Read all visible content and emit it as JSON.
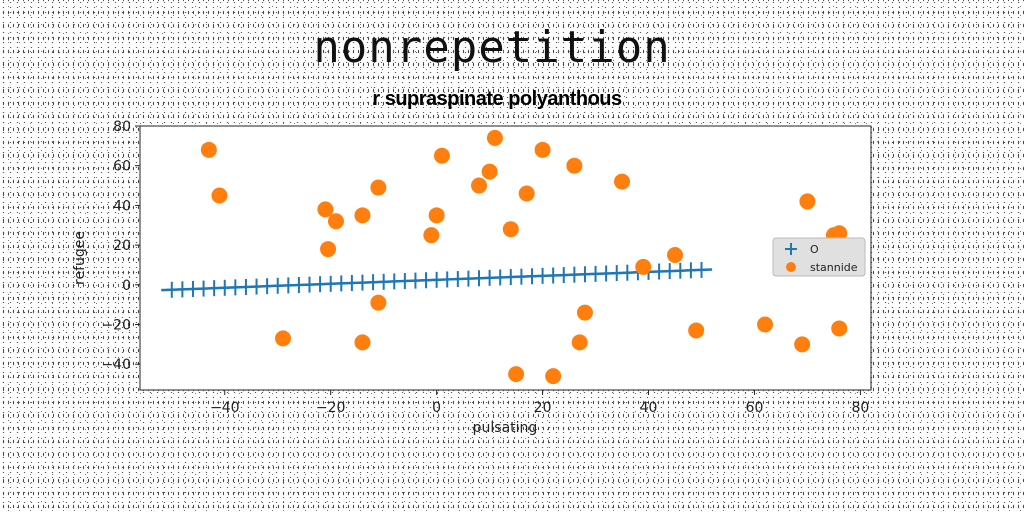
{
  "chart_data": {
    "type": "scatter",
    "title": "nonrepetition",
    "subtitle": "r supraspinate polyanthous",
    "xlabel": "pulsating",
    "ylabel": "refugee",
    "xlim": [
      -56,
      82
    ],
    "ylim": [
      -53,
      80
    ],
    "xticks": [
      -40,
      -20,
      0,
      20,
      40,
      60,
      80
    ],
    "xtick_labels": [
      "−40",
      "−20",
      "0",
      "20",
      "40",
      "60",
      "80"
    ],
    "yticks": [
      -40,
      -20,
      0,
      20,
      40,
      60,
      80
    ],
    "ytick_labels": [
      "−40",
      "−20",
      "0",
      "20",
      "40",
      "60",
      "80"
    ],
    "grid": false,
    "legend_position": "center-right",
    "series": [
      {
        "name": "O",
        "marker": "plus-line",
        "color": "#1f77b4",
        "x": [
          -50,
          -48,
          -46,
          -44,
          -42,
          -40,
          -38,
          -36,
          -34,
          -32,
          -30,
          -28,
          -26,
          -24,
          -22,
          -20,
          -18,
          -16,
          -14,
          -12,
          -10,
          -8,
          -6,
          -4,
          -2,
          0,
          2,
          4,
          6,
          8,
          10,
          12,
          14,
          16,
          18,
          20,
          22,
          24,
          26,
          28,
          30,
          32,
          34,
          36,
          38,
          40,
          42,
          44,
          46,
          48,
          50
        ],
        "y": [
          -2.5,
          -2.3,
          -2.1,
          -1.9,
          -1.7,
          -1.5,
          -1.3,
          -1.1,
          -0.9,
          -0.7,
          -0.5,
          -0.3,
          -0.1,
          0.1,
          0.3,
          0.5,
          0.7,
          0.9,
          1.1,
          1.3,
          1.5,
          1.7,
          1.9,
          2.1,
          2.3,
          2.5,
          2.7,
          2.9,
          3.1,
          3.3,
          3.5,
          3.7,
          3.9,
          4.1,
          4.3,
          4.5,
          4.7,
          4.9,
          5.1,
          5.3,
          5.5,
          5.7,
          5.9,
          6.1,
          6.3,
          6.5,
          6.7,
          6.9,
          7.1,
          7.3,
          7.5
        ]
      },
      {
        "name": "stannide",
        "marker": "circle",
        "color": "#ff7f0e",
        "x": [
          -43,
          -41,
          -29,
          -21,
          -20.5,
          -19,
          -14,
          -14,
          -11,
          -11,
          -1,
          0,
          1,
          8,
          10,
          11,
          14,
          15,
          17,
          20,
          22,
          26,
          27,
          28,
          35,
          39,
          45,
          49,
          62,
          69,
          69.5,
          70,
          75,
          76,
          76
        ],
        "y": [
          68,
          45,
          -27,
          38,
          18,
          32,
          35,
          -29,
          49,
          -9,
          25,
          35,
          65,
          50,
          57,
          74,
          28,
          -45,
          46,
          68,
          -46,
          60,
          -29,
          -14,
          52,
          9,
          15,
          -23,
          -20,
          -30,
          13,
          42,
          25,
          26,
          -22
        ]
      }
    ]
  }
}
